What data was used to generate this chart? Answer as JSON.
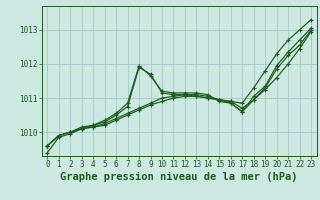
{
  "background_color": "#cce8e0",
  "grid_color": "#aacccc",
  "line_color": "#1a5c1a",
  "xlabel": "Graphe pression niveau de la mer (hPa)",
  "xlabel_fontsize": 7.5,
  "tick_fontsize": 5.5,
  "yticks": [
    1010,
    1011,
    1012,
    1013
  ],
  "xticks": [
    0,
    1,
    2,
    3,
    4,
    5,
    6,
    7,
    8,
    9,
    10,
    11,
    12,
    13,
    14,
    15,
    16,
    17,
    18,
    19,
    20,
    21,
    22,
    23
  ],
  "xlim": [
    -0.5,
    23.5
  ],
  "ylim": [
    1009.3,
    1013.7
  ],
  "series": [
    [
      1009.6,
      1009.9,
      1010.0,
      1010.1,
      1010.15,
      1010.2,
      1010.35,
      1010.5,
      1010.65,
      1010.8,
      1010.9,
      1011.0,
      1011.05,
      1011.05,
      1011.0,
      1010.95,
      1010.9,
      1010.85,
      1011.3,
      1011.8,
      1012.3,
      1012.7,
      1013.0,
      1013.3
    ],
    [
      1009.6,
      1009.9,
      1010.0,
      1010.1,
      1010.15,
      1010.25,
      1010.4,
      1010.55,
      1010.7,
      1010.85,
      1011.0,
      1011.05,
      1011.1,
      1011.05,
      1011.0,
      1010.95,
      1010.9,
      1010.7,
      1010.95,
      1011.25,
      1011.6,
      1012.0,
      1012.45,
      1012.95
    ],
    [
      1009.6,
      1009.9,
      1010.0,
      1010.15,
      1010.2,
      1010.3,
      1010.5,
      1010.75,
      1011.9,
      1011.7,
      1011.15,
      1011.1,
      1011.1,
      1011.1,
      1011.05,
      1010.95,
      1010.85,
      1010.6,
      1010.95,
      1011.3,
      1011.85,
      1012.25,
      1012.55,
      1013.0
    ],
    [
      1009.4,
      1009.85,
      1009.95,
      1010.1,
      1010.2,
      1010.35,
      1010.55,
      1010.85,
      1011.95,
      1011.65,
      1011.2,
      1011.15,
      1011.15,
      1011.15,
      1011.1,
      1010.9,
      1010.85,
      1010.6,
      1011.05,
      1011.35,
      1011.95,
      1012.35,
      1012.7,
      1013.05
    ]
  ]
}
